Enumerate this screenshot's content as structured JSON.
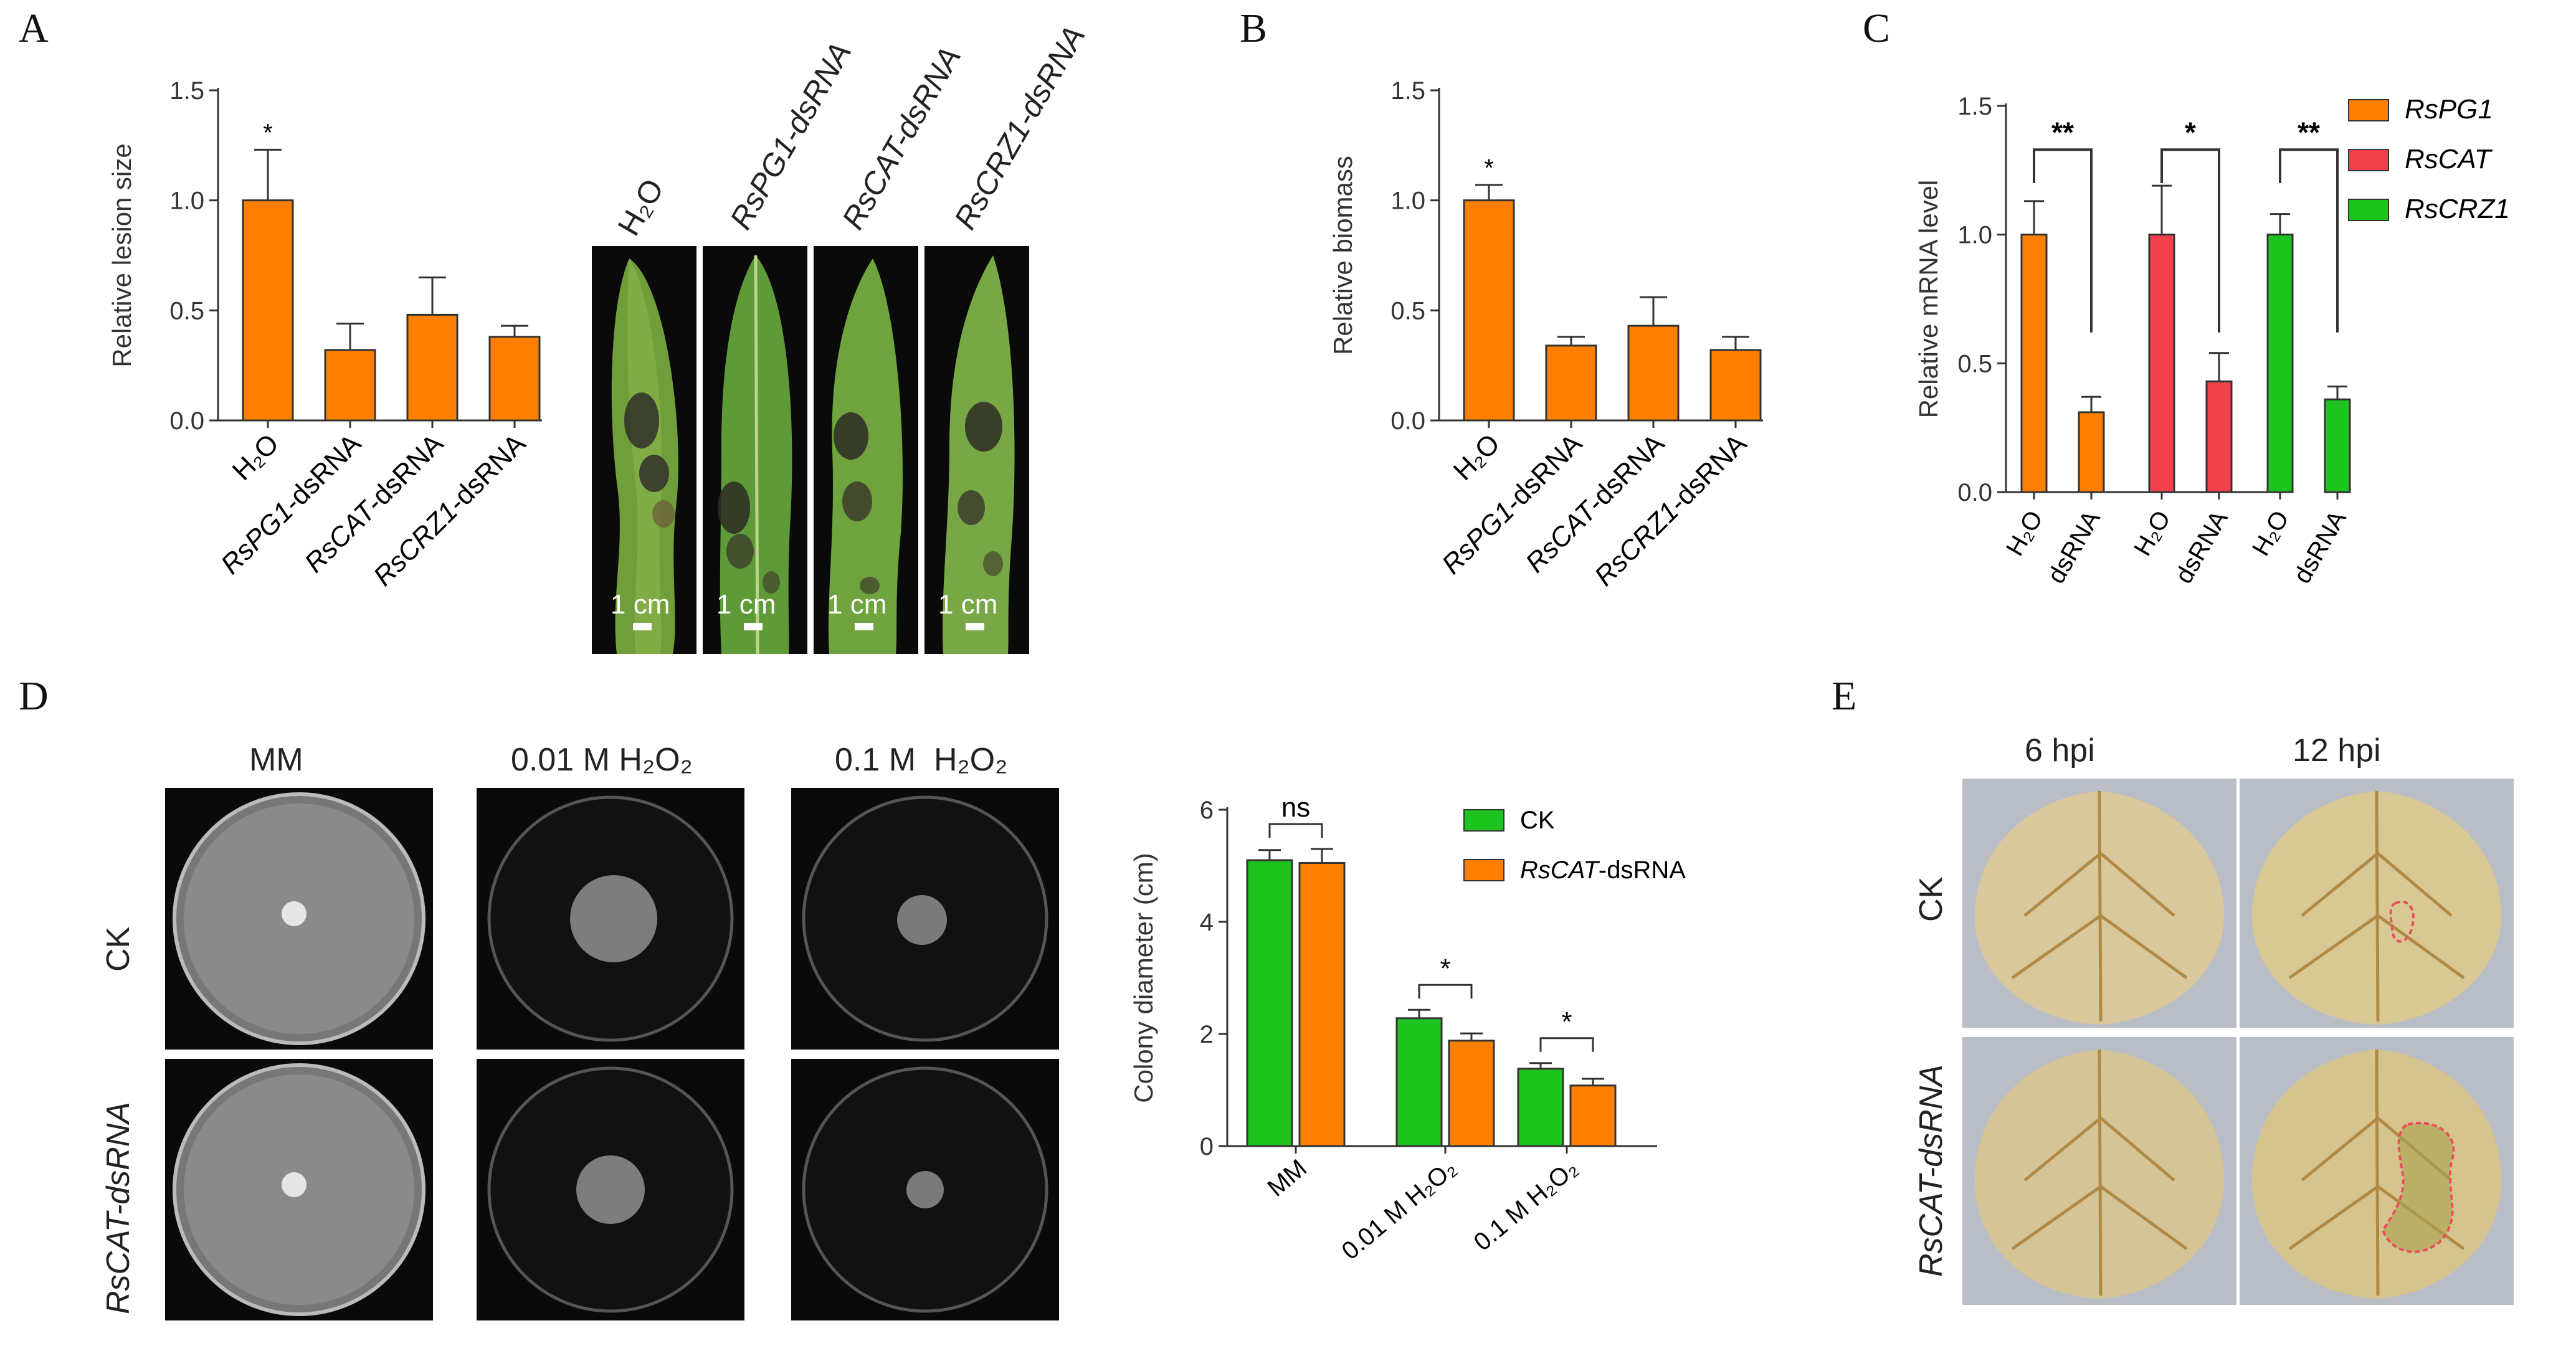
{
  "panels": {
    "a": {
      "letter": "A"
    },
    "b": {
      "letter": "B"
    },
    "c": {
      "letter": "C"
    },
    "d": {
      "letter": "D"
    },
    "e": {
      "letter": "E"
    }
  },
  "panel_a_photos": {
    "labels": [
      "H₂O",
      "RsPG1-dsRNA",
      "RsCAT-dsRNA",
      "RsCRZ1-dsRNA"
    ],
    "scale_bar": "1 cm"
  },
  "panel_d_photos": {
    "column_labels": [
      "MM",
      "0.01 M H₂O₂",
      "0.1 M  H₂O₂"
    ],
    "row_labels": [
      "CK",
      "RsCAT-dsRNA"
    ]
  },
  "panel_e_photos": {
    "column_labels": [
      "6 hpi",
      "12 hpi"
    ],
    "row_labels": [
      "CK",
      "RsCAT-dsRNA"
    ]
  },
  "colors": {
    "orange": "#FF8000",
    "red": "#F2414B",
    "green": "#1EC41E",
    "dashed_outline": "#E8505B"
  },
  "chart_data": [
    {
      "id": "A",
      "type": "bar",
      "ylabel": "Relative lesion size",
      "ylim": [
        0,
        1.5
      ],
      "yticks": [
        0.0,
        0.5,
        1.0,
        1.5
      ],
      "categories": [
        "H₂O",
        "RsPG1-dsRNA",
        "RsCAT-dsRNA",
        "RsCRZ1-dsRNA"
      ],
      "values": [
        1.0,
        0.32,
        0.48,
        0.38
      ],
      "errors": [
        0.23,
        0.12,
        0.17,
        0.05
      ],
      "significance": [
        "*",
        "",
        "",
        ""
      ],
      "color": "orange"
    },
    {
      "id": "B",
      "type": "bar",
      "ylabel": "Relative biomass",
      "ylim": [
        0,
        1.5
      ],
      "yticks": [
        0.0,
        0.5,
        1.0,
        1.5
      ],
      "categories": [
        "H₂O",
        "RsPG1-dsRNA",
        "RsCAT-dsRNA",
        "RsCRZ1-dsRNA"
      ],
      "values": [
        1.0,
        0.34,
        0.43,
        0.32
      ],
      "errors": [
        0.07,
        0.04,
        0.13,
        0.06
      ],
      "significance": [
        "*",
        "",
        "",
        ""
      ],
      "color": "orange"
    },
    {
      "id": "C",
      "type": "bar",
      "ylabel": "Relative mRNA level",
      "ylim": [
        0,
        1.5
      ],
      "yticks": [
        0.0,
        0.5,
        1.0,
        1.5
      ],
      "groups": [
        "RsPG1",
        "RsCAT",
        "RsCRZ1"
      ],
      "categories": [
        "H₂O",
        "dsRNA"
      ],
      "series": [
        {
          "name": "RsPG1",
          "color": "orange",
          "values": [
            1.0,
            0.31
          ],
          "errors": [
            0.13,
            0.06
          ]
        },
        {
          "name": "RsCAT",
          "color": "red",
          "values": [
            1.0,
            0.43
          ],
          "errors": [
            0.19,
            0.11
          ]
        },
        {
          "name": "RsCRZ1",
          "color": "green",
          "values": [
            1.0,
            0.36
          ],
          "errors": [
            0.08,
            0.05
          ]
        }
      ],
      "significance": [
        "**",
        "*",
        "**"
      ],
      "legend": "top-right"
    },
    {
      "id": "D",
      "type": "bar",
      "ylabel": "Colony diameter (cm)",
      "ylim": [
        0,
        6
      ],
      "yticks": [
        0,
        2,
        4,
        6
      ],
      "categories": [
        "MM",
        "0.01 M H₂O₂",
        "0.1 M H₂O₂"
      ],
      "series": [
        {
          "name": "CK",
          "color": "green",
          "values": [
            5.1,
            2.28,
            1.38
          ],
          "errors": [
            0.18,
            0.15,
            0.1
          ]
        },
        {
          "name": "RsCAT-dsRNA",
          "color": "orange",
          "values": [
            5.05,
            1.88,
            1.08
          ],
          "errors": [
            0.25,
            0.13,
            0.12
          ]
        }
      ],
      "significance": [
        "ns",
        "*",
        "*"
      ],
      "legend": "top-right"
    }
  ]
}
